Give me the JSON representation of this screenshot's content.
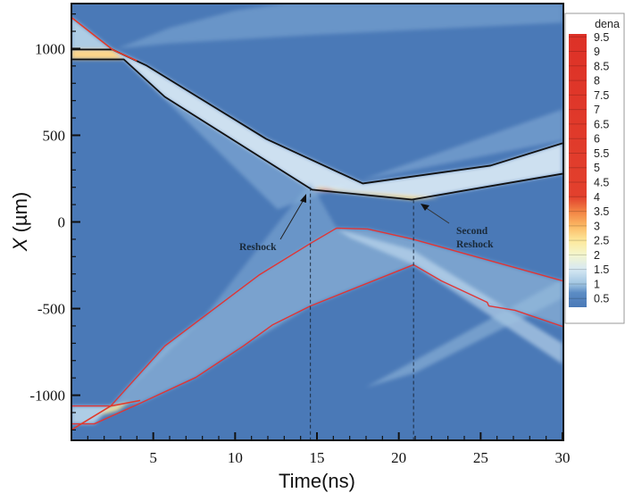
{
  "chart_data": {
    "type": "heatmap",
    "title": "",
    "xlabel": "Time(ns)",
    "ylabel_italic": "X",
    "ylabel_unit": " (µm)",
    "xlim": [
      0,
      30
    ],
    "ylim": [
      -1260,
      1260
    ],
    "xticks": [
      5,
      10,
      15,
      20,
      25,
      30
    ],
    "xtick_labels": [
      "5",
      "10",
      "15",
      "20",
      "25",
      "30"
    ],
    "yticks": [
      1000,
      500,
      0,
      -500,
      -1000
    ],
    "ytick_labels": [
      "1000",
      "500",
      "0",
      "-500",
      "-1000"
    ],
    "x_minor_step": 1,
    "y_minor_step": 100,
    "background_color": "#4a79b7",
    "colorbar": {
      "title": "dena",
      "range": [
        0.2,
        9.6
      ],
      "ticks": [
        9.5,
        9,
        8.5,
        8,
        7.5,
        7,
        6.5,
        6,
        5.5,
        5,
        4.5,
        4,
        3.5,
        3,
        2.5,
        2,
        1.5,
        1,
        0.5
      ],
      "tick_labels": [
        "9.5",
        "9",
        "8.5",
        "8",
        "7.5",
        "7",
        "6.5",
        "6",
        "5.5",
        "5",
        "4.5",
        "4",
        "3.5",
        "3",
        "2.5",
        "2",
        "1.5",
        "1",
        "0.5"
      ],
      "stops": [
        {
          "v": 0.2,
          "color": "#4a79b7"
        },
        {
          "v": 0.7,
          "color": "#5b8cc4"
        },
        {
          "v": 1.0,
          "color": "#9fc4e1"
        },
        {
          "v": 1.5,
          "color": "#d6e8f3"
        },
        {
          "v": 2.0,
          "color": "#f4f6cf"
        },
        {
          "v": 2.5,
          "color": "#fde89a"
        },
        {
          "v": 3.0,
          "color": "#fbb864"
        },
        {
          "v": 3.5,
          "color": "#f28243"
        },
        {
          "v": 4.0,
          "color": "#e2402d"
        },
        {
          "v": 9.6,
          "color": "#dd3127"
        }
      ]
    },
    "regions": [
      {
        "name": "upper-fan",
        "color": "#8fb6dc",
        "opacity": 0.45,
        "points": [
          [
            2.8,
            1000
          ],
          [
            6,
            1120
          ],
          [
            10,
            1220
          ],
          [
            13,
            1260
          ],
          [
            30,
            1260
          ],
          [
            30,
            1150
          ],
          [
            15,
            1080
          ],
          [
            6,
            1030
          ]
        ]
      },
      {
        "name": "initial-upper-layer",
        "color": "#b9d6ea",
        "opacity": 0.9,
        "points": [
          [
            0,
            1180
          ],
          [
            2.5,
            995
          ],
          [
            0,
            995
          ]
        ]
      },
      {
        "name": "rarefaction-wedge",
        "color": "#8db4da",
        "opacity": 0.55,
        "points": [
          [
            3.2,
            938
          ],
          [
            5.7,
            722
          ],
          [
            14.7,
            186
          ],
          [
            12.6,
            72
          ]
        ]
      },
      {
        "name": "rising-ray-upper",
        "color": "#8fb6dc",
        "opacity": 0.5,
        "points": [
          [
            12.6,
            72
          ],
          [
            14.7,
            186
          ],
          [
            30,
            470
          ],
          [
            30,
            650
          ]
        ]
      },
      {
        "name": "shocked-band",
        "color": "#dcebf6",
        "opacity": 0.9,
        "points": [
          [
            2.5,
            995
          ],
          [
            4.6,
            902
          ],
          [
            11.9,
            479
          ],
          [
            17.8,
            222
          ],
          [
            25.6,
            325
          ],
          [
            30,
            454
          ],
          [
            30,
            278
          ],
          [
            20.8,
            129
          ],
          [
            14.7,
            186
          ],
          [
            5.7,
            722
          ],
          [
            3.2,
            938
          ]
        ]
      },
      {
        "name": "reshock-hot-zone",
        "color": "#fde08a",
        "opacity": 0.95,
        "points": [
          [
            14.7,
            186
          ],
          [
            16,
            178
          ],
          [
            20.8,
            129
          ],
          [
            22.5,
            140
          ],
          [
            20.8,
            150
          ],
          [
            17,
            175
          ],
          [
            15.2,
            200
          ]
        ]
      },
      {
        "name": "reshock-red-tip",
        "color": "#e2402d",
        "opacity": 0.9,
        "points": [
          [
            14.7,
            186
          ],
          [
            16.2,
            175
          ],
          [
            15.6,
            190
          ]
        ]
      },
      {
        "name": "initial-upper-yellow",
        "color": "#fcd58a",
        "opacity": 1,
        "points": [
          [
            0,
            995
          ],
          [
            2.5,
            995
          ],
          [
            3.2,
            938
          ],
          [
            0,
            938
          ]
        ]
      },
      {
        "name": "outer-lower-fan",
        "color": "#8fb6dc",
        "opacity": 0.45,
        "points": [
          [
            2.4,
            -1062
          ],
          [
            8,
            -560
          ],
          [
            14.6,
            230
          ],
          [
            16.2,
            -36
          ],
          [
            11.5,
            -304
          ],
          [
            5.7,
            -716
          ]
        ]
      },
      {
        "name": "mixing-fan",
        "color": "#a9cbe6",
        "opacity": 0.5,
        "points": [
          [
            2.4,
            -1062
          ],
          [
            5.7,
            -716
          ],
          [
            11.5,
            -304
          ],
          [
            14.6,
            -124
          ],
          [
            16.2,
            -36
          ],
          [
            18.1,
            -41
          ],
          [
            20.8,
            -98
          ],
          [
            30,
            -340
          ],
          [
            30,
            -603
          ],
          [
            27.1,
            -510
          ],
          [
            25.4,
            -464
          ],
          [
            22.6,
            -340
          ],
          [
            20.9,
            -247
          ],
          [
            14.6,
            -485
          ],
          [
            10.5,
            -716
          ],
          [
            7.6,
            -897
          ],
          [
            4.2,
            -1046
          ],
          [
            2.4,
            -1062
          ]
        ]
      },
      {
        "name": "descending-ray",
        "color": "#c8e0f1",
        "opacity": 0.6,
        "points": [
          [
            16.2,
            -40
          ],
          [
            20.8,
            -160
          ],
          [
            30,
            -700
          ],
          [
            30,
            -820
          ],
          [
            20.9,
            -247
          ],
          [
            17,
            -90
          ]
        ]
      },
      {
        "name": "rising-ray-lower",
        "color": "#9fc4e1",
        "opacity": 0.5,
        "points": [
          [
            18,
            -954
          ],
          [
            30,
            -330
          ],
          [
            30,
            -440
          ],
          [
            21,
            -870
          ]
        ]
      },
      {
        "name": "initial-lower-layer",
        "color": "#b9d6ea",
        "opacity": 0.9,
        "points": [
          [
            0,
            -1062
          ],
          [
            2.4,
            -1062
          ],
          [
            1.4,
            -1165
          ],
          [
            0,
            -1165
          ]
        ]
      },
      {
        "name": "lower-bright-spot",
        "color": "#fde89a",
        "opacity": 0.9,
        "points": [
          [
            1.6,
            -1120
          ],
          [
            2.4,
            -1062
          ],
          [
            3.6,
            -1040
          ],
          [
            2.8,
            -1090
          ]
        ]
      }
    ],
    "series": [
      {
        "name": "upper-interface-outer",
        "color": "#111111",
        "width": 1.8,
        "t": [
          0,
          2.5,
          4.6,
          11.9,
          17.8,
          25.6,
          30
        ],
        "x": [
          995,
          995,
          902,
          479,
          222,
          325,
          454
        ]
      },
      {
        "name": "upper-interface-inner",
        "color": "#111111",
        "width": 1.8,
        "t": [
          0,
          3.2,
          5.7,
          14.7,
          20.8,
          30
        ],
        "x": [
          938,
          938,
          722,
          186,
          129,
          278
        ]
      },
      {
        "name": "upper-shock-trace",
        "color": "#e23a2a",
        "width": 1.6,
        "t": [
          0,
          2.5,
          4.0
        ],
        "x": [
          1180,
          995,
          930
        ]
      },
      {
        "name": "lower-interface-upper",
        "color": "#e03535",
        "width": 1.4,
        "t": [
          0,
          2.4,
          5.7,
          11.5,
          14.6,
          16.1,
          16.2,
          18.1,
          20.8,
          30
        ],
        "x": [
          -1062,
          -1062,
          -716,
          -304,
          -124,
          -41,
          -36,
          -41,
          -98,
          -340
        ]
      },
      {
        "name": "lower-interface-lower",
        "color": "#e03535",
        "width": 1.4,
        "t": [
          0,
          1.4,
          4.2,
          7.6,
          10.5,
          12.3,
          14.6,
          20.9,
          22.6,
          25.4,
          25.5,
          27.1,
          30
        ],
        "x": [
          -1165,
          -1165,
          -1046,
          -897,
          -716,
          -593,
          -485,
          -247,
          -340,
          -464,
          -485,
          -510,
          -603
        ]
      },
      {
        "name": "lower-shock-trace",
        "color": "#e23a2a",
        "width": 1.6,
        "t": [
          0,
          2.4,
          4.2
        ],
        "x": [
          -1200,
          -1062,
          -1030
        ]
      }
    ],
    "markers": [
      {
        "name": "reshock",
        "t": 14.6,
        "x_top": 200,
        "label": "Reshock"
      },
      {
        "name": "second-reshock",
        "t": 20.9,
        "x_top": 129,
        "label_line1": "Second",
        "label_line2": "Reshock"
      }
    ]
  }
}
